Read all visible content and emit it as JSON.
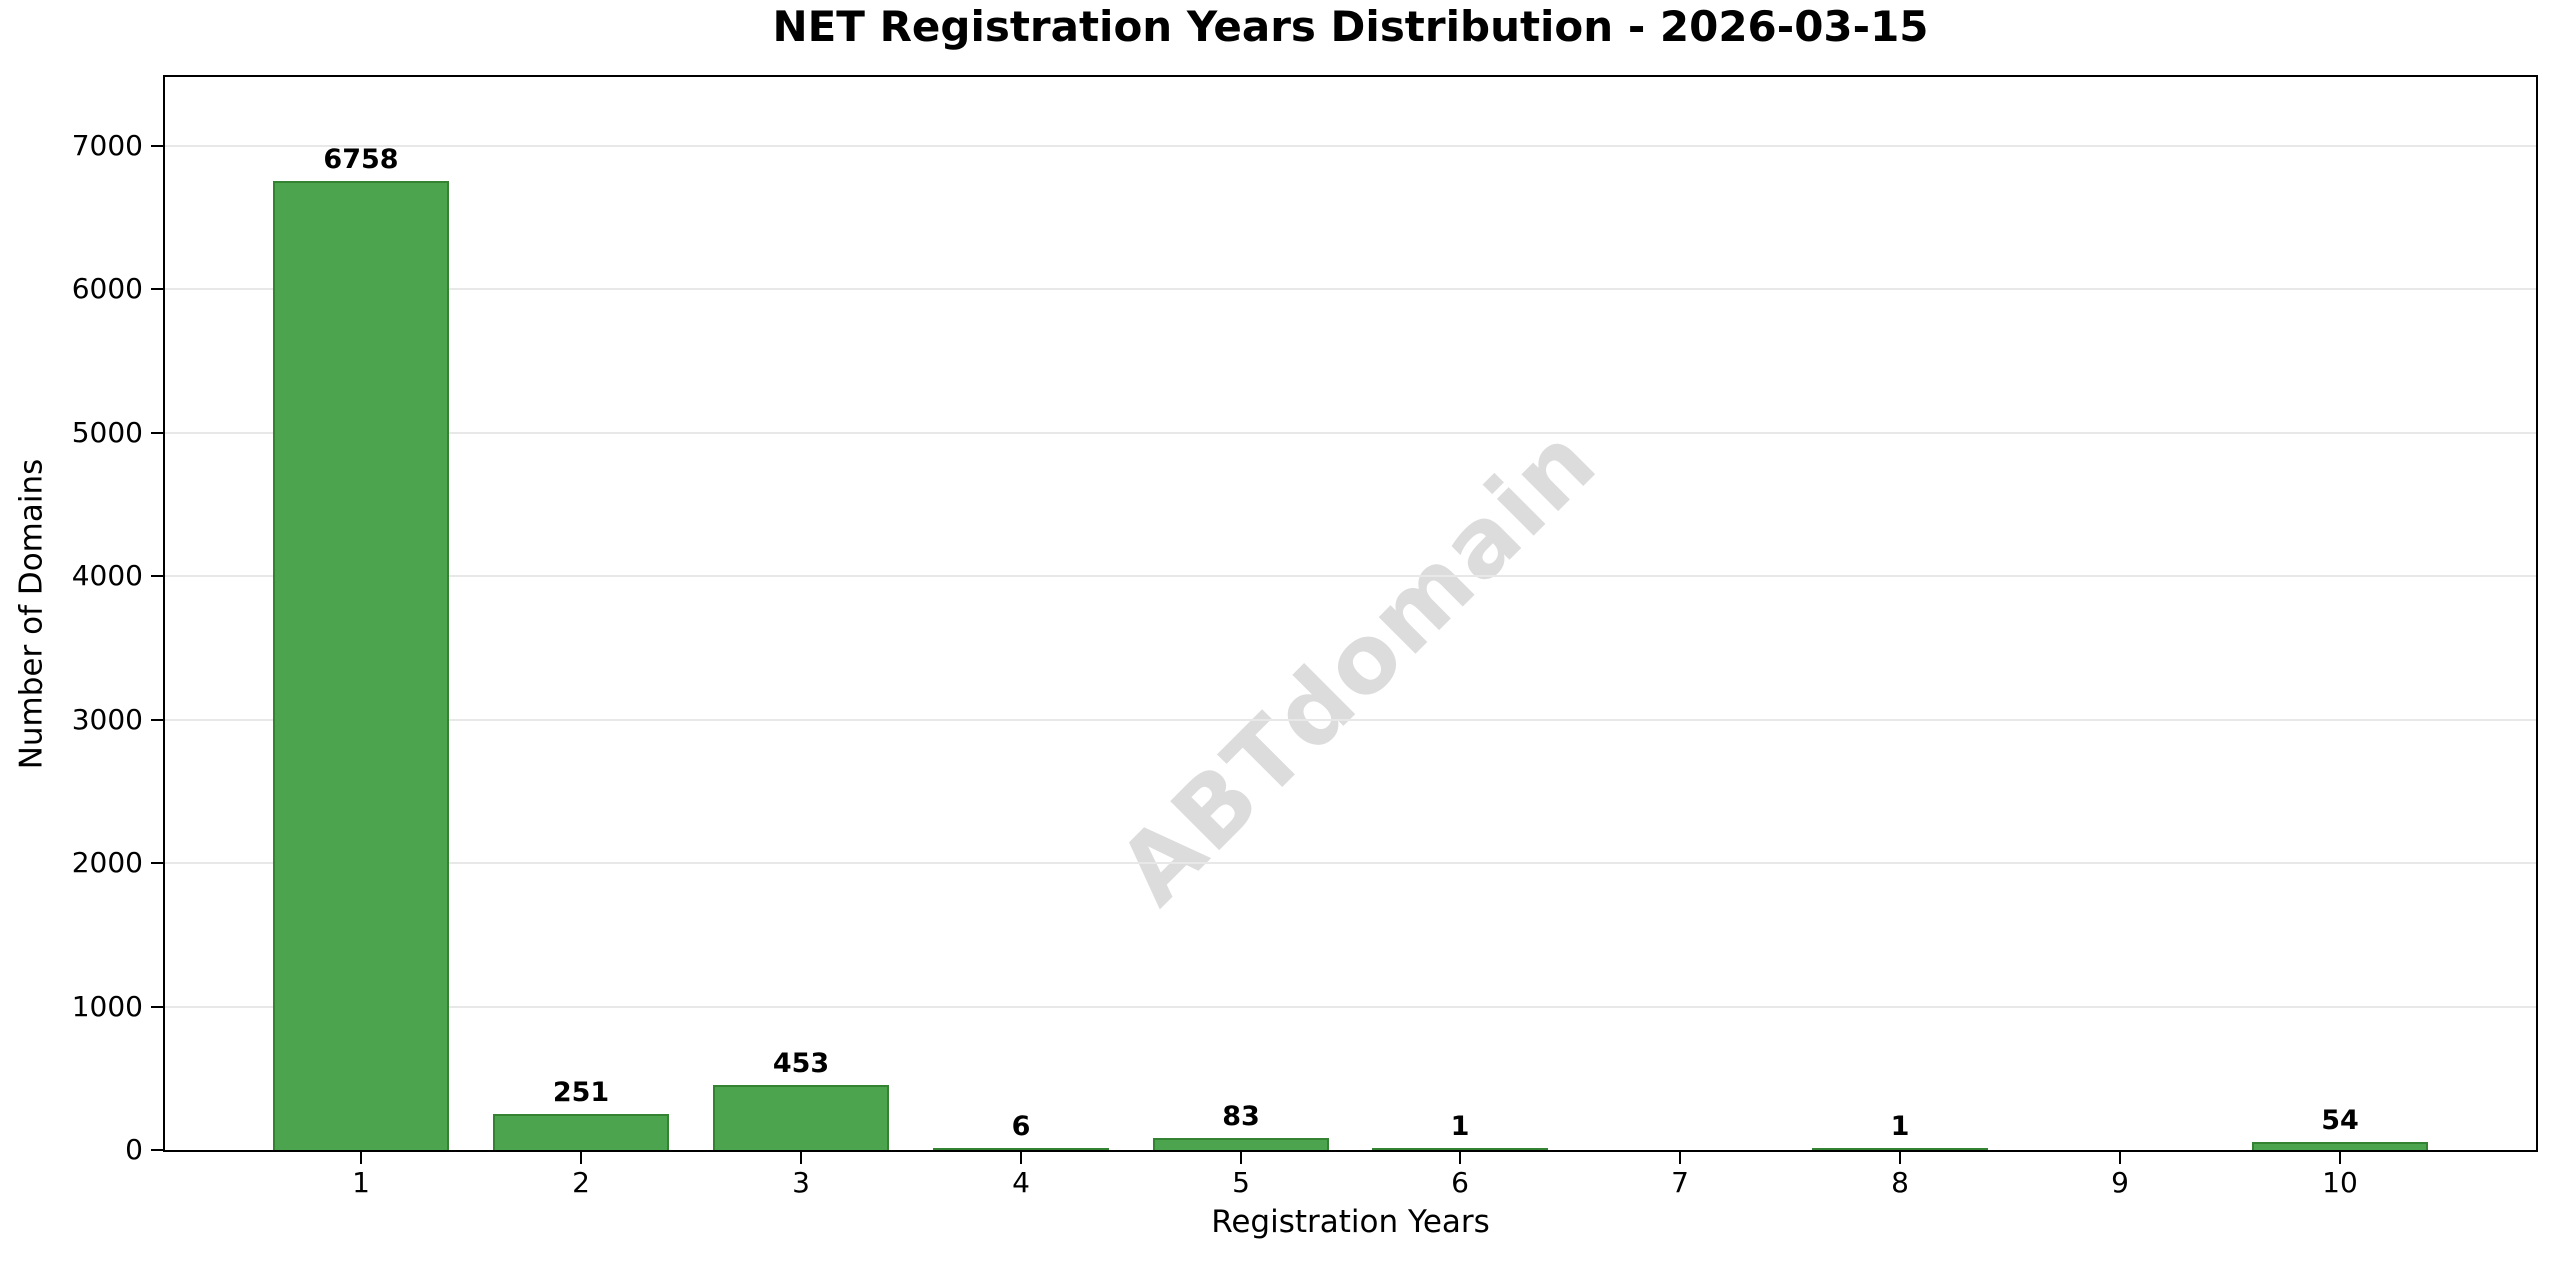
{
  "figure": {
    "title": "NET Registration Years Distribution - 2026-03-15",
    "watermark": "ABTdomain"
  },
  "chart_data": {
    "type": "bar",
    "title": "NET Registration Years Distribution - 2026-03-15",
    "xlabel": "Registration Years",
    "ylabel": "Number of Domains",
    "categories": [
      1,
      2,
      3,
      4,
      5,
      6,
      7,
      8,
      9,
      10
    ],
    "values": [
      6758,
      251,
      453,
      6,
      83,
      1,
      0,
      1,
      0,
      54
    ],
    "bar_value_labels": [
      "6758",
      "251",
      "453",
      "6",
      "83",
      "1",
      "",
      "1",
      "",
      "54"
    ],
    "x_tick_labels": [
      "1",
      "2",
      "3",
      "4",
      "5",
      "6",
      "7",
      "8",
      "9",
      "10"
    ],
    "y_tick_values": [
      0,
      1000,
      2000,
      3000,
      4000,
      5000,
      6000,
      7000
    ],
    "y_tick_labels": [
      "0",
      "1000",
      "2000",
      "3000",
      "4000",
      "5000",
      "6000",
      "7000"
    ],
    "ylim": [
      0,
      7480
    ],
    "xlim": [
      0.11,
      10.89
    ],
    "bar_width_units": 0.8,
    "grid": "horizontal",
    "legend": "none",
    "watermark": "ABTdomain",
    "colors": {
      "bar_fill": "#4CA44E",
      "bar_edge": "#338333",
      "grid": "#e8e8e8",
      "text": "#000000",
      "spine": "#000000",
      "watermark": "#dcdcdc",
      "background": "#ffffff"
    }
  }
}
